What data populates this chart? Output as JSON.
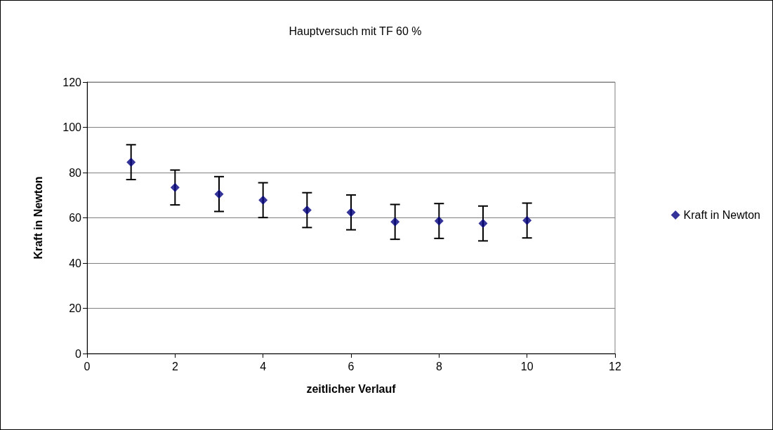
{
  "chart_data": {
    "type": "scatter",
    "title": "Hauptversuch mit TF 60 %",
    "xlabel": "zeitlicher Verlauf",
    "ylabel": "Kraft in Newton",
    "x": [
      1,
      2,
      3,
      4,
      5,
      6,
      7,
      8,
      9,
      10
    ],
    "series": [
      {
        "name": "Kraft in Newton",
        "color": "#000080",
        "values": [
          84.6,
          73.4,
          70.5,
          67.8,
          63.4,
          62.4,
          58.2,
          58.6,
          57.5,
          58.8
        ],
        "errors": [
          7.7,
          7.7,
          7.7,
          7.7,
          7.7,
          7.7,
          7.7,
          7.7,
          7.7,
          7.7
        ]
      }
    ],
    "xlim": [
      0,
      12
    ],
    "xticks": [
      0,
      2,
      4,
      6,
      8,
      10,
      12
    ],
    "ylim": [
      0,
      120
    ],
    "yticks": [
      0,
      20,
      40,
      60,
      80,
      100,
      120
    ],
    "grid": "y",
    "legend": "right",
    "marker": "diamond"
  }
}
